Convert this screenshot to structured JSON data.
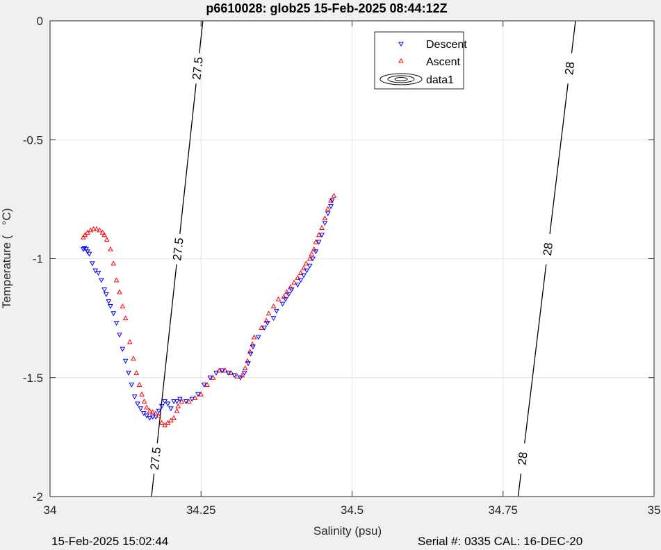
{
  "chart_data": {
    "type": "scatter",
    "title": "p6610028: glob25 15-Feb-2025 08:44:12Z",
    "xlabel": "Salinity (psu)",
    "ylabel": "Temperature (   °C)",
    "xlim": [
      34,
      35
    ],
    "ylim": [
      -2,
      0
    ],
    "xticks": [
      "34",
      "34.25",
      "34.5",
      "34.75",
      "35"
    ],
    "yticks": [
      "0",
      "-0.5",
      "-1",
      "-1.5",
      "-2"
    ],
    "grid": true,
    "legend_position": "top-right",
    "legend": [
      "Descent",
      "Ascent",
      "data1"
    ],
    "series": [
      {
        "name": "Descent",
        "marker": "triangle-down",
        "color": "#0000ff",
        "points": [
          [
            34.055,
            -0.96
          ],
          [
            34.057,
            -0.955
          ],
          [
            34.06,
            -0.96
          ],
          [
            34.062,
            -0.97
          ],
          [
            34.065,
            -0.98
          ],
          [
            34.07,
            -1.02
          ],
          [
            34.075,
            -1.05
          ],
          [
            34.08,
            -1.06
          ],
          [
            34.085,
            -1.09
          ],
          [
            34.09,
            -1.13
          ],
          [
            34.093,
            -1.15
          ],
          [
            34.097,
            -1.18
          ],
          [
            34.1,
            -1.2
          ],
          [
            34.105,
            -1.23
          ],
          [
            34.11,
            -1.27
          ],
          [
            34.115,
            -1.32
          ],
          [
            34.12,
            -1.38
          ],
          [
            34.125,
            -1.43
          ],
          [
            34.13,
            -1.48
          ],
          [
            34.135,
            -1.53
          ],
          [
            34.14,
            -1.58
          ],
          [
            34.145,
            -1.61
          ],
          [
            34.15,
            -1.63
          ],
          [
            34.155,
            -1.65
          ],
          [
            34.16,
            -1.66
          ],
          [
            34.165,
            -1.67
          ],
          [
            34.17,
            -1.665
          ],
          [
            34.175,
            -1.665
          ],
          [
            34.18,
            -1.64
          ],
          [
            34.185,
            -1.62
          ],
          [
            34.19,
            -1.6
          ],
          [
            34.195,
            -1.61
          ],
          [
            34.2,
            -1.63
          ],
          [
            34.205,
            -1.6
          ],
          [
            34.21,
            -1.6
          ],
          [
            34.215,
            -1.59
          ],
          [
            34.225,
            -1.6
          ],
          [
            34.235,
            -1.59
          ],
          [
            34.245,
            -1.57
          ],
          [
            34.255,
            -1.53
          ],
          [
            34.265,
            -1.5
          ],
          [
            34.275,
            -1.48
          ],
          [
            34.285,
            -1.47
          ],
          [
            34.295,
            -1.48
          ],
          [
            34.305,
            -1.49
          ],
          [
            34.315,
            -1.5
          ],
          [
            34.322,
            -1.48
          ],
          [
            34.328,
            -1.44
          ],
          [
            34.332,
            -1.4
          ],
          [
            34.336,
            -1.37
          ],
          [
            34.345,
            -1.33
          ],
          [
            34.355,
            -1.29
          ],
          [
            34.36,
            -1.27
          ],
          [
            34.37,
            -1.25
          ],
          [
            34.375,
            -1.22
          ],
          [
            34.385,
            -1.19
          ],
          [
            34.39,
            -1.17
          ],
          [
            34.395,
            -1.15
          ],
          [
            34.4,
            -1.13
          ],
          [
            34.41,
            -1.11
          ],
          [
            34.415,
            -1.09
          ],
          [
            34.42,
            -1.07
          ],
          [
            34.425,
            -1.05
          ],
          [
            34.43,
            -1.03
          ],
          [
            34.435,
            -1.0
          ],
          [
            34.44,
            -0.97
          ],
          [
            34.445,
            -0.93
          ],
          [
            34.45,
            -0.9
          ],
          [
            34.455,
            -0.85
          ],
          [
            34.46,
            -0.81
          ],
          [
            34.465,
            -0.78
          ],
          [
            34.467,
            -0.755
          ]
        ]
      },
      {
        "name": "Ascent",
        "marker": "triangle-up",
        "color": "#ff0000",
        "points": [
          [
            34.055,
            -0.91
          ],
          [
            34.058,
            -0.9
          ],
          [
            34.062,
            -0.89
          ],
          [
            34.067,
            -0.88
          ],
          [
            34.072,
            -0.875
          ],
          [
            34.077,
            -0.875
          ],
          [
            34.082,
            -0.88
          ],
          [
            34.087,
            -0.89
          ],
          [
            34.09,
            -0.9
          ],
          [
            34.094,
            -0.92
          ],
          [
            34.1,
            -0.96
          ],
          [
            34.105,
            -1.02
          ],
          [
            34.11,
            -1.09
          ],
          [
            34.115,
            -1.14
          ],
          [
            34.12,
            -1.2
          ],
          [
            34.125,
            -1.25
          ],
          [
            34.132,
            -1.35
          ],
          [
            34.138,
            -1.42
          ],
          [
            34.143,
            -1.48
          ],
          [
            34.148,
            -1.53
          ],
          [
            34.152,
            -1.57
          ],
          [
            34.156,
            -1.6
          ],
          [
            34.16,
            -1.625
          ],
          [
            34.165,
            -1.64
          ],
          [
            34.17,
            -1.645
          ],
          [
            34.175,
            -1.65
          ],
          [
            34.18,
            -1.66
          ],
          [
            34.185,
            -1.69
          ],
          [
            34.19,
            -1.7
          ],
          [
            34.195,
            -1.69
          ],
          [
            34.2,
            -1.68
          ],
          [
            34.205,
            -1.67
          ],
          [
            34.21,
            -1.64
          ],
          [
            34.212,
            -1.62
          ],
          [
            34.218,
            -1.6
          ],
          [
            34.23,
            -1.6
          ],
          [
            34.24,
            -1.585
          ],
          [
            34.25,
            -1.57
          ],
          [
            34.26,
            -1.53
          ],
          [
            34.27,
            -1.5
          ],
          [
            34.28,
            -1.47
          ],
          [
            34.29,
            -1.47
          ],
          [
            34.3,
            -1.48
          ],
          [
            34.31,
            -1.495
          ],
          [
            34.318,
            -1.49
          ],
          [
            34.323,
            -1.46
          ],
          [
            34.327,
            -1.43
          ],
          [
            34.331,
            -1.39
          ],
          [
            34.335,
            -1.36
          ],
          [
            34.338,
            -1.33
          ],
          [
            34.35,
            -1.29
          ],
          [
            34.358,
            -1.26
          ],
          [
            34.362,
            -1.23
          ],
          [
            34.37,
            -1.2
          ],
          [
            34.378,
            -1.17
          ],
          [
            34.387,
            -1.16
          ],
          [
            34.392,
            -1.14
          ],
          [
            34.398,
            -1.12
          ],
          [
            34.404,
            -1.1
          ],
          [
            34.41,
            -1.08
          ],
          [
            34.415,
            -1.06
          ],
          [
            34.42,
            -1.04
          ],
          [
            34.424,
            -1.02
          ],
          [
            34.43,
            -1.0
          ],
          [
            34.433,
            -0.98
          ],
          [
            34.437,
            -0.96
          ],
          [
            34.44,
            -0.93
          ],
          [
            34.445,
            -0.9
          ],
          [
            34.45,
            -0.87
          ],
          [
            34.455,
            -0.83
          ],
          [
            34.46,
            -0.79
          ],
          [
            34.465,
            -0.755
          ],
          [
            34.47,
            -0.735
          ]
        ]
      }
    ],
    "contours": [
      {
        "label": "27.5",
        "from": [
          34.168,
          -2
        ],
        "to": [
          34.253,
          0
        ]
      },
      {
        "label": "28",
        "from": [
          34.775,
          -2
        ],
        "to": [
          34.87,
          0
        ]
      }
    ]
  },
  "footer": {
    "left": "15-Feb-2025 15:02:44",
    "right": "Serial #: 0335  CAL: 16-DEC-20"
  }
}
